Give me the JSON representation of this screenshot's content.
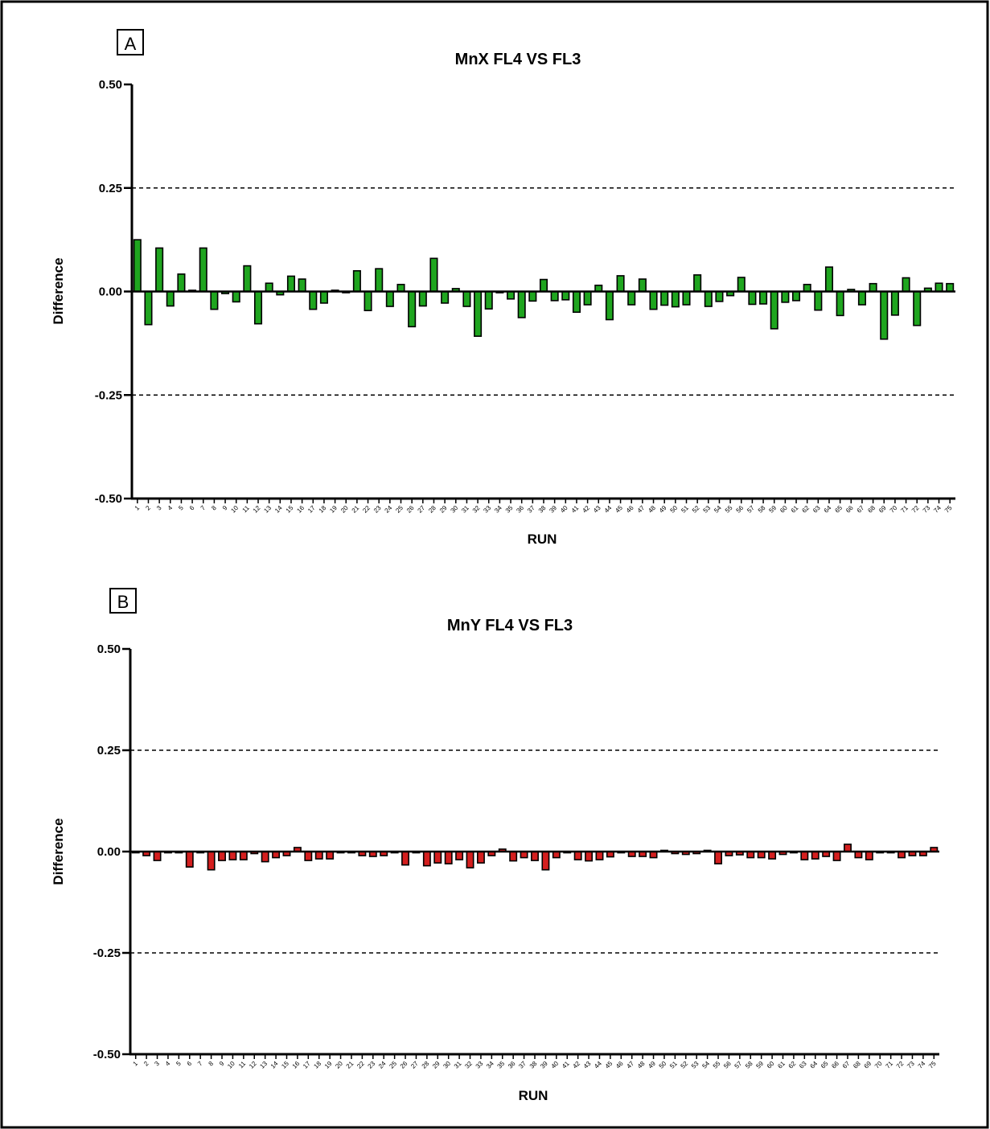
{
  "chart_data": [
    {
      "type": "bar",
      "panel_label": "A",
      "title": "MnX FL4 VS FL3",
      "xlabel": "RUN",
      "ylabel": "Difference",
      "ylim": [
        -0.5,
        0.5
      ],
      "yticks": [
        0.5,
        0.25,
        0.0,
        -0.25,
        -0.5
      ],
      "ytick_labels": [
        "0.50",
        "0.25",
        "0.00",
        "-0.25",
        "-0.50"
      ],
      "reference_lines": [
        0.25,
        -0.25
      ],
      "grid": false,
      "bar_color": "#1fa51f",
      "categories": [
        "1",
        "2",
        "3",
        "4",
        "5",
        "6",
        "7",
        "8",
        "9",
        "10",
        "11",
        "12",
        "13",
        "14",
        "15",
        "16",
        "17",
        "18",
        "19",
        "20",
        "21",
        "22",
        "23",
        "24",
        "25",
        "26",
        "27",
        "28",
        "29",
        "30",
        "31",
        "32",
        "33",
        "34",
        "35",
        "36",
        "37",
        "38",
        "39",
        "40",
        "41",
        "42",
        "43",
        "44",
        "45",
        "46",
        "47",
        "48",
        "49",
        "50",
        "51",
        "52",
        "53",
        "54",
        "55",
        "56",
        "57",
        "58",
        "59",
        "60",
        "61",
        "62",
        "63",
        "64",
        "65",
        "66",
        "67",
        "68",
        "69",
        "70",
        "71",
        "72",
        "73",
        "74",
        "75"
      ],
      "values": [
        0.125,
        -0.08,
        0.105,
        -0.035,
        0.042,
        0.0,
        0.105,
        -0.043,
        -0.005,
        -0.025,
        0.062,
        -0.078,
        0.02,
        -0.008,
        0.037,
        0.03,
        -0.043,
        -0.028,
        0.003,
        -0.002,
        0.05,
        -0.046,
        0.055,
        -0.036,
        0.017,
        -0.085,
        -0.035,
        0.08,
        -0.028,
        0.007,
        -0.036,
        -0.108,
        -0.042,
        -0.003,
        -0.018,
        -0.063,
        -0.023,
        0.029,
        -0.022,
        -0.02,
        -0.05,
        -0.032,
        0.015,
        -0.068,
        0.038,
        -0.032,
        0.03,
        -0.043,
        -0.033,
        -0.037,
        -0.032,
        0.04,
        -0.036,
        -0.024,
        -0.01,
        0.034,
        -0.031,
        -0.03,
        -0.09,
        -0.026,
        -0.022,
        0.017,
        -0.045,
        0.059,
        -0.058,
        0.005,
        -0.032,
        0.019,
        -0.115,
        -0.057,
        0.033,
        -0.082,
        0.008,
        0.02,
        0.019
      ]
    },
    {
      "type": "bar",
      "panel_label": "B",
      "title": "MnY FL4 VS FL3",
      "xlabel": "RUN",
      "ylabel": "Difference",
      "ylim": [
        -0.5,
        0.5
      ],
      "yticks": [
        0.5,
        0.25,
        0.0,
        -0.25,
        -0.5
      ],
      "ytick_labels": [
        "0.50",
        "0.25",
        "0.00",
        "-0.25",
        "-0.50"
      ],
      "reference_lines": [
        0.25,
        -0.25
      ],
      "grid": false,
      "bar_color": "#d41f1f",
      "categories": [
        "1",
        "2",
        "3",
        "4",
        "5",
        "6",
        "7",
        "8",
        "9",
        "10",
        "11",
        "12",
        "13",
        "14",
        "15",
        "16",
        "17",
        "18",
        "19",
        "20",
        "21",
        "22",
        "23",
        "24",
        "25",
        "26",
        "27",
        "28",
        "29",
        "30",
        "31",
        "32",
        "33",
        "34",
        "35",
        "36",
        "37",
        "38",
        "39",
        "40",
        "41",
        "42",
        "43",
        "44",
        "45",
        "46",
        "47",
        "48",
        "49",
        "50",
        "51",
        "52",
        "53",
        "54",
        "55",
        "56",
        "57",
        "58",
        "59",
        "60",
        "61",
        "62",
        "63",
        "64",
        "65",
        "66",
        "67",
        "68",
        "69",
        "70",
        "71",
        "72",
        "73",
        "74",
        "75"
      ],
      "values": [
        -0.002,
        -0.01,
        -0.022,
        -0.002,
        -0.002,
        -0.038,
        -0.002,
        -0.045,
        -0.022,
        -0.02,
        -0.02,
        -0.005,
        -0.025,
        -0.015,
        -0.01,
        0.01,
        -0.022,
        -0.018,
        -0.018,
        -0.002,
        -0.002,
        -0.01,
        -0.012,
        -0.01,
        -0.003,
        -0.033,
        -0.002,
        -0.035,
        -0.028,
        -0.03,
        -0.02,
        -0.04,
        -0.028,
        -0.01,
        0.006,
        -0.023,
        -0.015,
        -0.022,
        -0.045,
        -0.015,
        -0.002,
        -0.02,
        -0.023,
        -0.02,
        -0.013,
        -0.003,
        -0.012,
        -0.012,
        -0.015,
        0.003,
        -0.005,
        -0.007,
        -0.005,
        0.003,
        -0.03,
        -0.01,
        -0.008,
        -0.015,
        -0.015,
        -0.018,
        -0.007,
        -0.003,
        -0.02,
        -0.018,
        -0.012,
        -0.022,
        0.018,
        -0.015,
        -0.02,
        -0.003,
        -0.003,
        -0.015,
        -0.01,
        -0.01,
        0.01
      ]
    }
  ]
}
